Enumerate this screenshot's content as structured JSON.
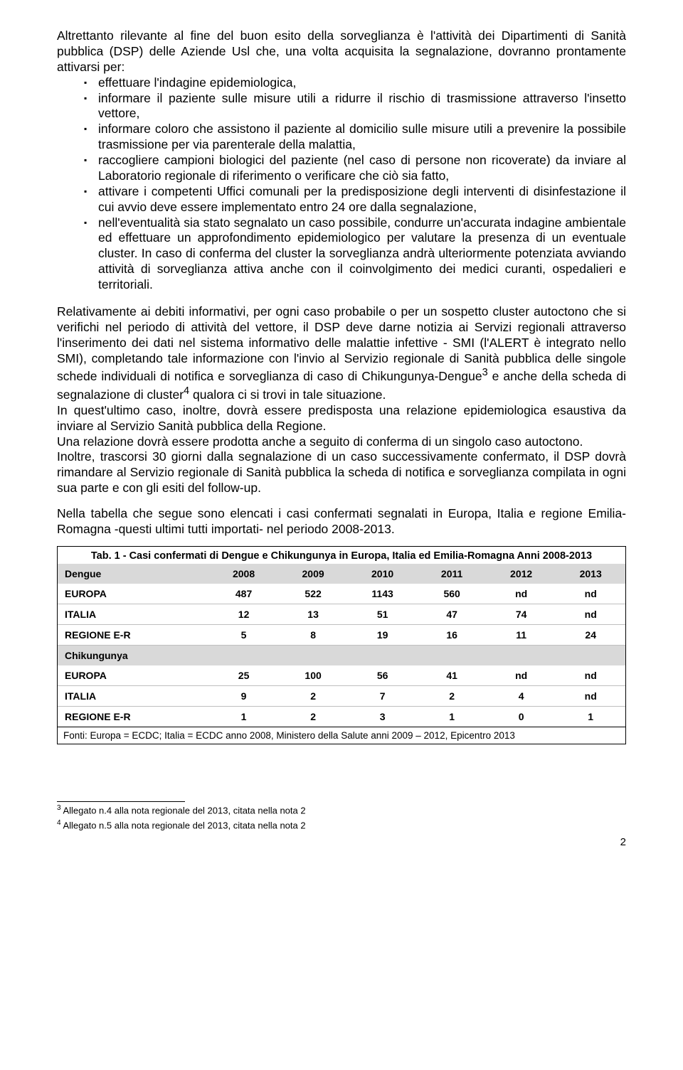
{
  "intro": "Altrettanto rilevante al fine del buon esito della sorveglianza è l'attività dei Dipartimenti di Sanità pubblica (DSP) delle Aziende Usl che, una volta acquisita la segnalazione, dovranno prontamente attivarsi per:",
  "bullets": [
    "effettuare l'indagine epidemiologica,",
    "informare il paziente sulle misure utili a ridurre il rischio di trasmissione attraverso l'insetto vettore,",
    "informare coloro che assistono il paziente al domicilio sulle misure utili a prevenire la possibile trasmissione per via parenterale della malattia,",
    "raccogliere campioni biologici del paziente (nel caso di persone non ricoverate) da inviare al Laboratorio regionale di riferimento o verificare che ciò sia fatto,",
    "attivare i competenti Uffici comunali per la predisposizione degli interventi di disinfestazione il cui avvio deve essere implementato entro 24 ore dalla segnalazione,",
    "nell'eventualità sia stato segnalato un caso possibile, condurre un'accurata indagine ambientale ed effettuare un approfondimento epidemiologico per valutare la presenza di un eventuale cluster. In caso di conferma del cluster la sorveglianza andrà ulteriormente potenziata avviando attività di sorveglianza attiva anche con il coinvolgimento dei medici curanti, ospedalieri e territoriali."
  ],
  "p2a": "Relativamente ai debiti informativi, per ogni caso probabile o per un sospetto cluster autoctono che si verifichi nel periodo di attività del vettore, il DSP deve darne notizia ai Servizi regionali attraverso l'inserimento dei dati nel sistema informativo delle malattie infettive - SMI (l'ALERT è integrato nello SMI), completando tale informazione con l'invio al Servizio regionale di Sanità pubblica delle singole schede individuali di notifica e sorveglianza di caso di Chikungunya-Dengue",
  "p2b": " e anche della scheda di segnalazione di cluster",
  "p2c": " qualora ci si trovi in tale situazione.",
  "p3": "In quest'ultimo caso, inoltre, dovrà essere predisposta una relazione epidemiologica esaustiva da inviare al Servizio Sanità pubblica della Regione.",
  "p4": "Una relazione dovrà essere prodotta anche a seguito di conferma di un singolo caso autoctono.",
  "p5": "Inoltre, trascorsi 30 giorni dalla segnalazione di un caso successivamente confermato, il DSP dovrà rimandare al Servizio regionale di Sanità pubblica la scheda di notifica e sorveglianza compilata in ogni sua parte e con gli esiti del follow-up.",
  "p6": "Nella tabella che segue sono elencati i casi confermati segnalati in Europa, Italia e regione Emilia-Romagna -questi ultimi tutti importati- nel periodo 2008-2013.",
  "table": {
    "title": "Tab. 1 - Casi confermati di Dengue e Chikungunya in Europa, Italia ed Emilia-Romagna Anni 2008-2013",
    "years": [
      "2008",
      "2009",
      "2010",
      "2011",
      "2012",
      "2013"
    ],
    "sections": [
      {
        "name": "Dengue",
        "rows": [
          {
            "label": "EUROPA",
            "vals": [
              "487",
              "522",
              "1143",
              "560",
              "nd",
              "nd"
            ]
          },
          {
            "label": "ITALIA",
            "vals": [
              "12",
              "13",
              "51",
              "47",
              "74",
              "nd"
            ]
          },
          {
            "label": "REGIONE E-R",
            "vals": [
              "5",
              "8",
              "19",
              "16",
              "11",
              "24"
            ]
          }
        ]
      },
      {
        "name": "Chikungunya",
        "rows": [
          {
            "label": "EUROPA",
            "vals": [
              "25",
              "100",
              "56",
              "41",
              "nd",
              "nd"
            ]
          },
          {
            "label": "ITALIA",
            "vals": [
              "9",
              "2",
              "7",
              "2",
              "4",
              "nd"
            ]
          },
          {
            "label": "REGIONE E-R",
            "vals": [
              "1",
              "2",
              "3",
              "1",
              "0",
              "1"
            ]
          }
        ]
      }
    ],
    "footer": "Fonti: Europa = ECDC; Italia = ECDC anno 2008, Ministero della Salute anni 2009 – 2012, Epicentro 2013"
  },
  "fn3_num": "3",
  "fn4_num": "4",
  "fn3": " Allegato n.4 alla nota regionale del 2013, citata nella nota 2",
  "fn4": " Allegato n.5 alla nota regionale del 2013, citata nella nota 2",
  "pagenum": "2"
}
